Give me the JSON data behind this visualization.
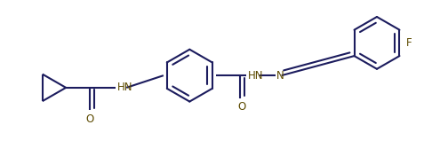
{
  "bg_color": "#ffffff",
  "line_color": "#1c1c5e",
  "line_color2": "#5c4a00",
  "line_width": 1.5,
  "font_size": 8.5,
  "figsize": [
    5.04,
    1.85
  ],
  "dpi": 100,
  "xlim": [
    0,
    10.08
  ],
  "ylim": [
    0,
    3.7
  ]
}
